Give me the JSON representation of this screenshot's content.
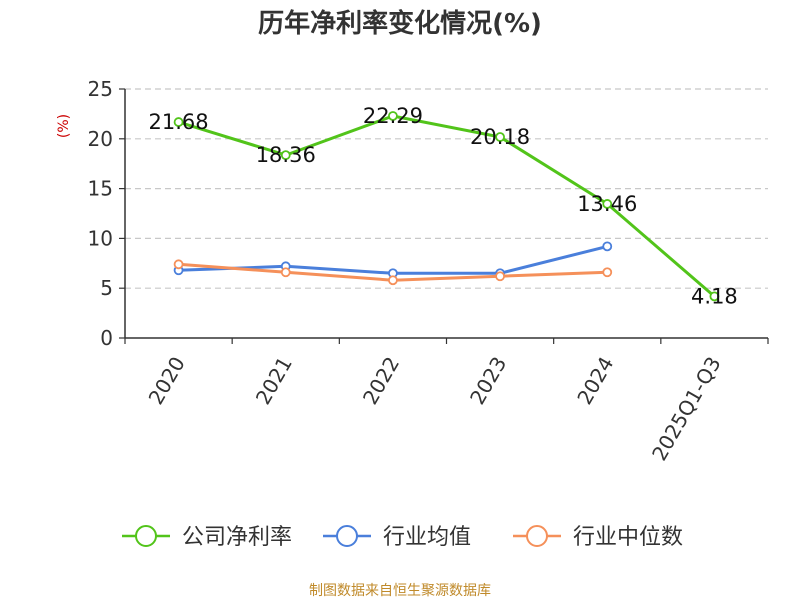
{
  "chart_data": {
    "type": "line",
    "title": "历年净利率变化情况(%)",
    "ylabel": "(%)",
    "xlabel": "",
    "categories": [
      "2020",
      "2021",
      "2022",
      "2023",
      "2024",
      "2025Q1-Q3"
    ],
    "ylim": [
      0,
      25
    ],
    "yticks": [
      0,
      5,
      10,
      15,
      20,
      25
    ],
    "grid": "horizontal-dashed",
    "legend_position": "bottom",
    "series": [
      {
        "name": "公司净利率",
        "color": "#52c41a",
        "values": [
          21.68,
          18.36,
          22.29,
          20.18,
          13.46,
          4.18
        ],
        "labels": [
          "21.68",
          "18.36",
          "22.29",
          "20.18",
          "13.46",
          "4.18"
        ]
      },
      {
        "name": "行业均值",
        "color": "#4a7fdb",
        "values": [
          6.8,
          7.2,
          6.5,
          6.5,
          9.2,
          null
        ]
      },
      {
        "name": "行业中位数",
        "color": "#f5905a",
        "values": [
          7.4,
          6.6,
          5.8,
          6.2,
          6.6,
          null
        ]
      }
    ]
  },
  "source": "制图数据来自恒生聚源数据库"
}
